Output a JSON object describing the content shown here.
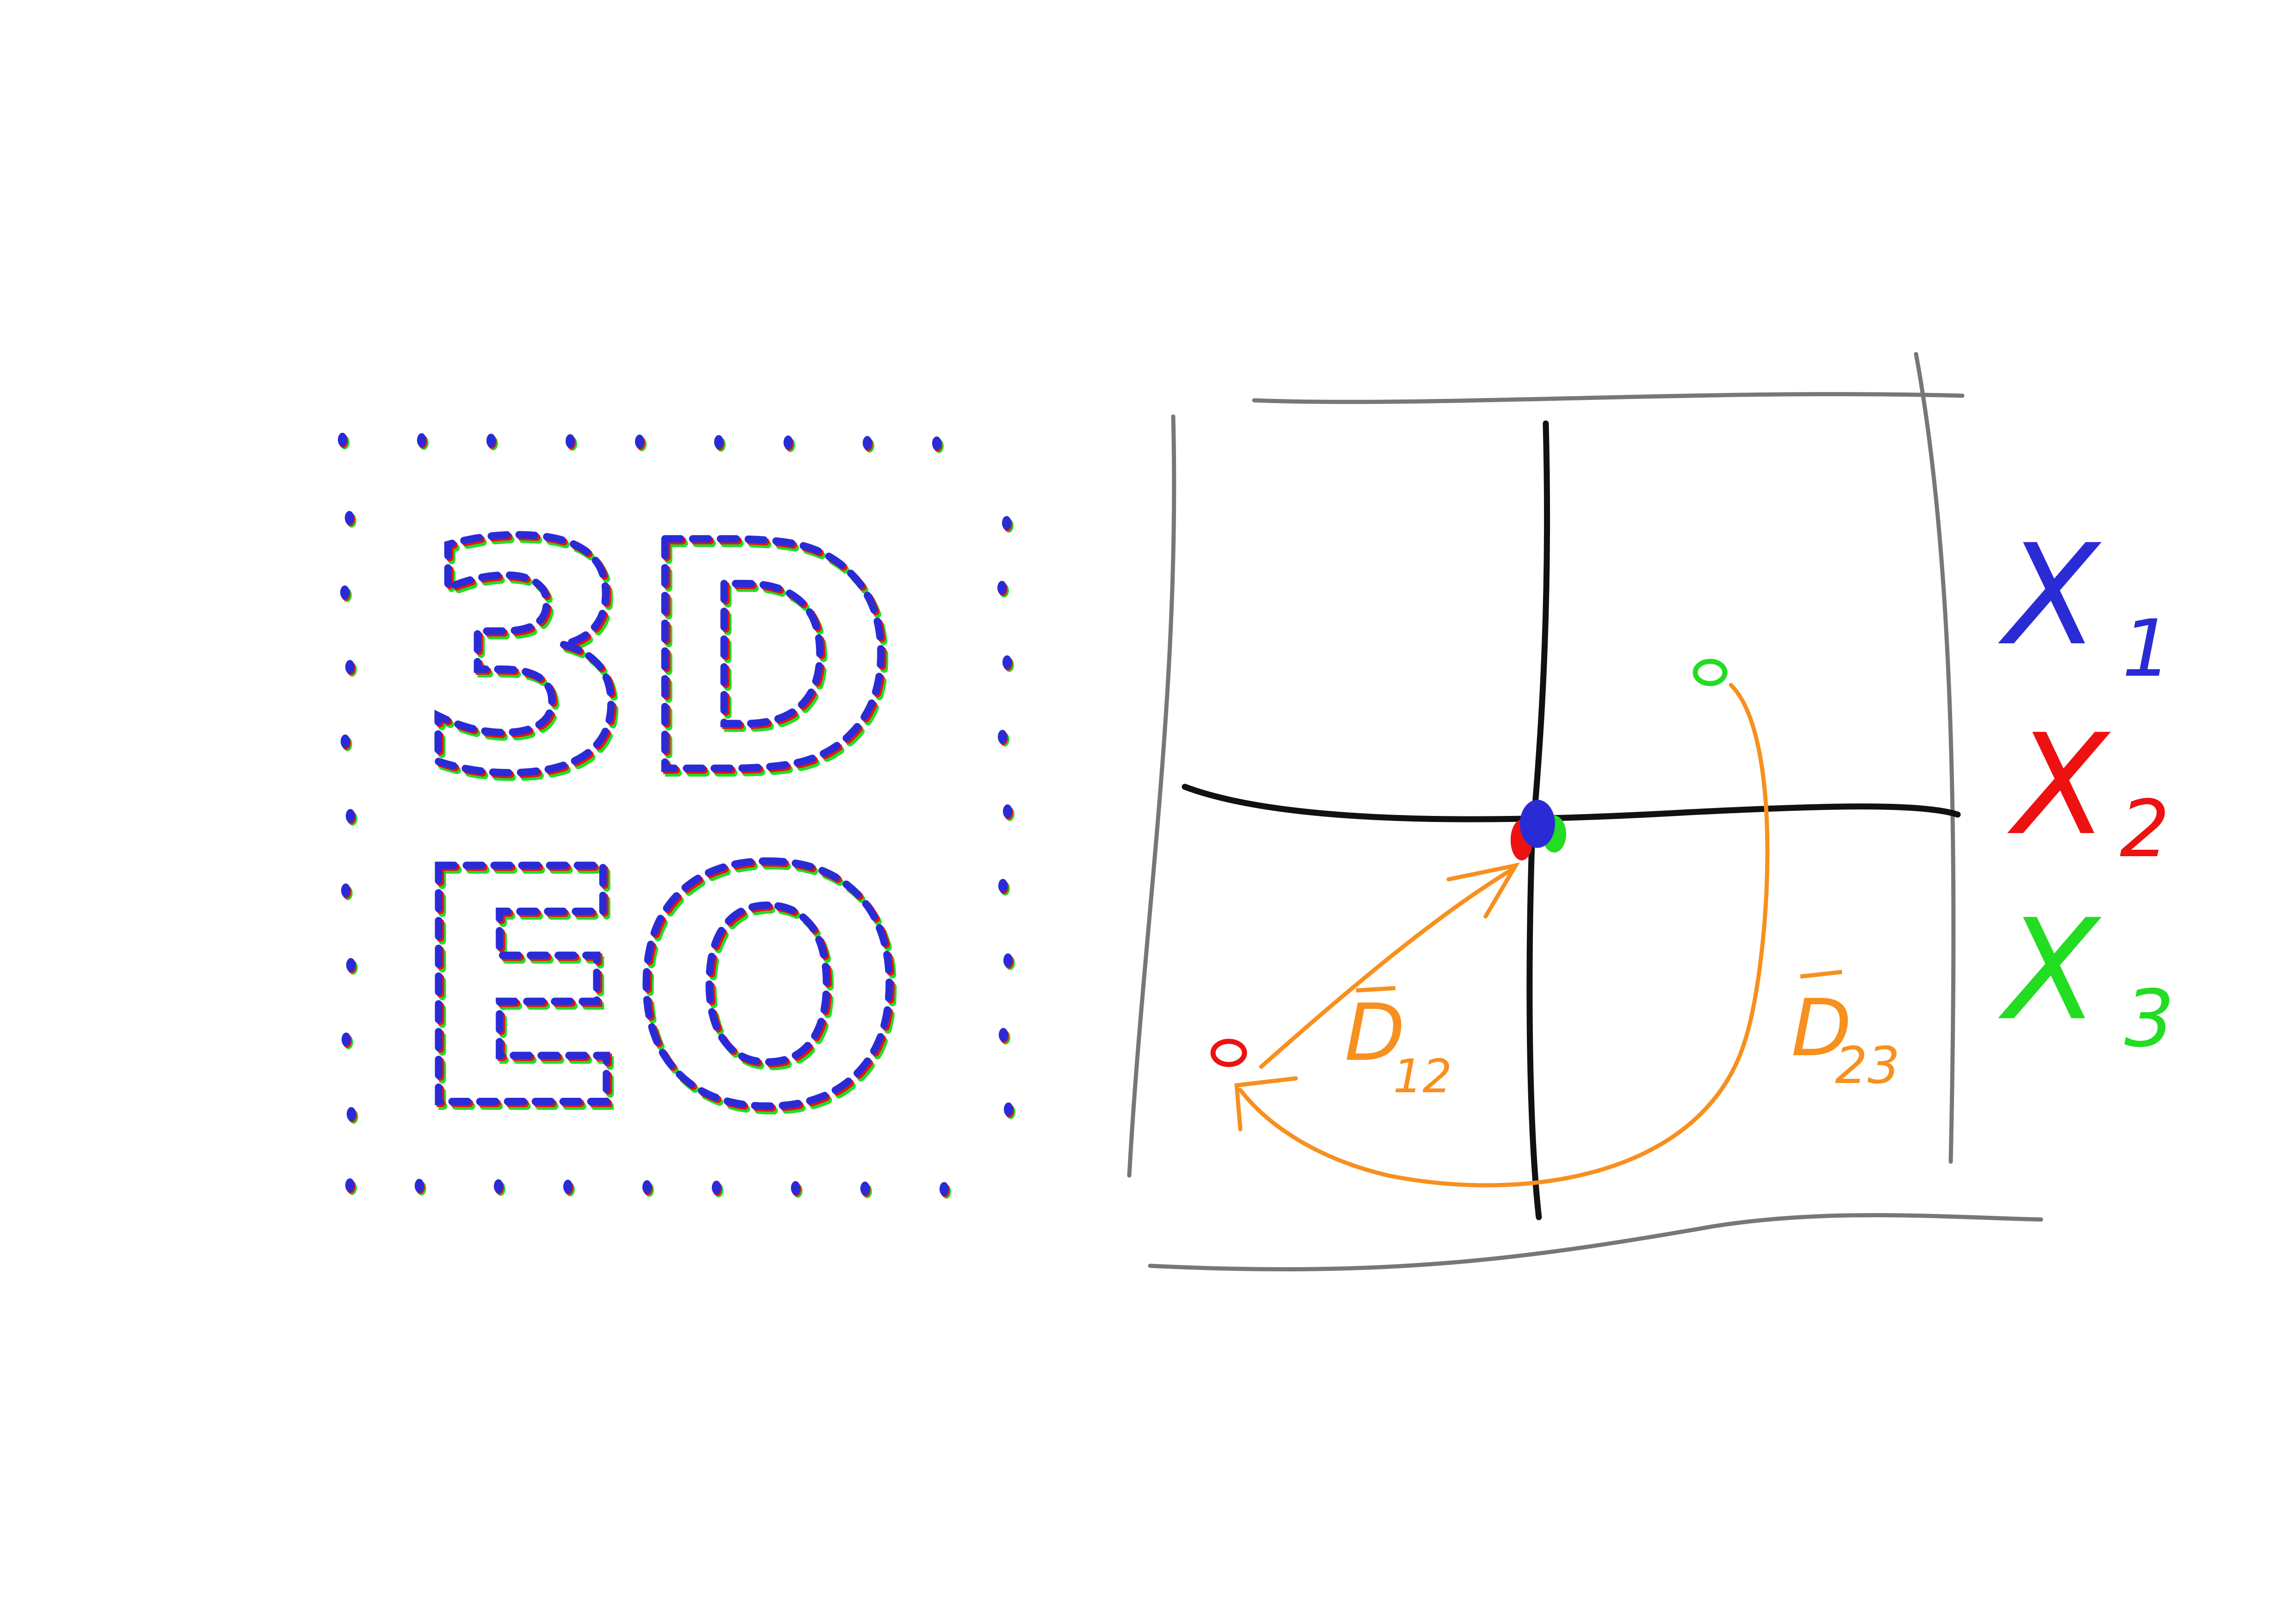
{
  "logo": {
    "text_top": "3D",
    "text_bottom": "EO",
    "channel_colors": [
      "#2b2bd6",
      "#ee1111",
      "#22dd22"
    ]
  },
  "diagram": {
    "arrow_color": "#f7901e",
    "label_d12": {
      "base": "D",
      "sub": "12"
    },
    "label_d23": {
      "base": "D",
      "sub": "23"
    }
  },
  "legend": {
    "items": [
      {
        "base": "X",
        "sub": "1",
        "color": "#2b2bd6"
      },
      {
        "base": "X",
        "sub": "2",
        "color": "#ee1111"
      },
      {
        "base": "X",
        "sub": "3",
        "color": "#22dd22"
      }
    ]
  }
}
